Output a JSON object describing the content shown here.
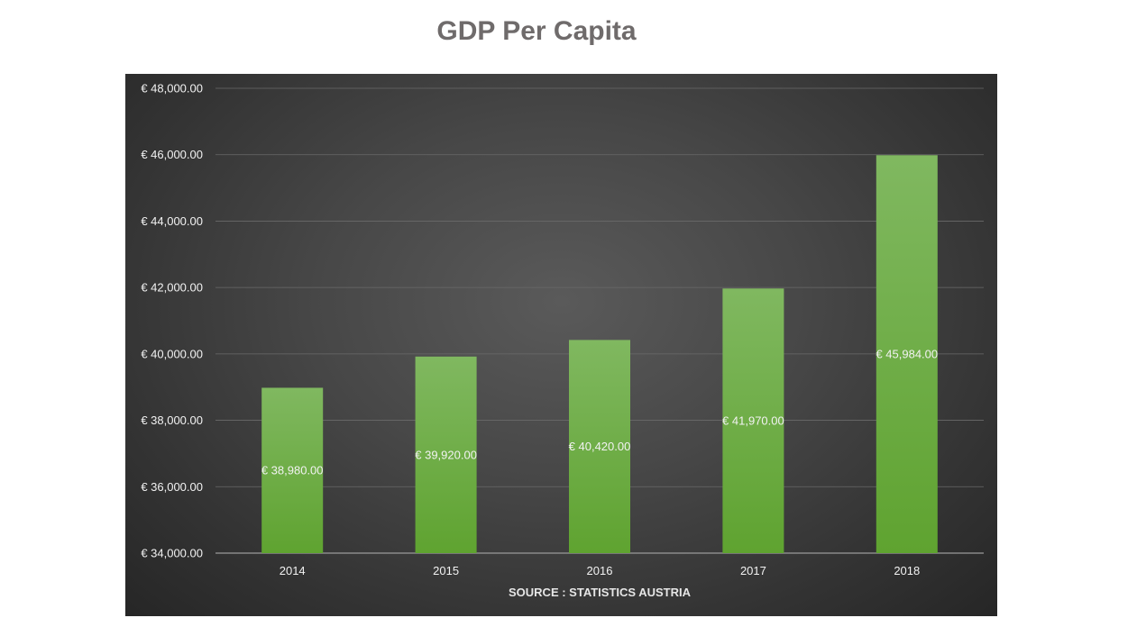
{
  "chart_data": {
    "type": "bar",
    "title": "GDP Per Capita",
    "xlabel": "SOURCE : STATISTICS AUSTRIA",
    "ylabel": "",
    "categories": [
      "2014",
      "2015",
      "2016",
      "2017",
      "2018"
    ],
    "values": [
      38980,
      39920,
      40420,
      41970,
      45984
    ],
    "data_labels": [
      "€ 38,980.00",
      "€ 39,920.00",
      "€ 40,420.00",
      "€ 41,970.00",
      "€ 45,984.00"
    ],
    "ylim": [
      34000,
      48000
    ],
    "yticks": [
      34000,
      36000,
      38000,
      40000,
      42000,
      44000,
      46000,
      48000
    ],
    "ytick_labels": [
      "€ 34,000.00",
      "€ 36,000.00",
      "€ 38,000.00",
      "€ 40,000.00",
      "€ 42,000.00",
      "€ 44,000.00",
      "€ 46,000.00",
      "€ 48,000.00"
    ],
    "grid": true,
    "legend": "none",
    "colors": {
      "bar_top": "#80b860",
      "bar_bottom": "#5fa330",
      "grid": "#6a6a6a",
      "axis": "#9a9a9a",
      "text": "#f2f2f2"
    }
  }
}
